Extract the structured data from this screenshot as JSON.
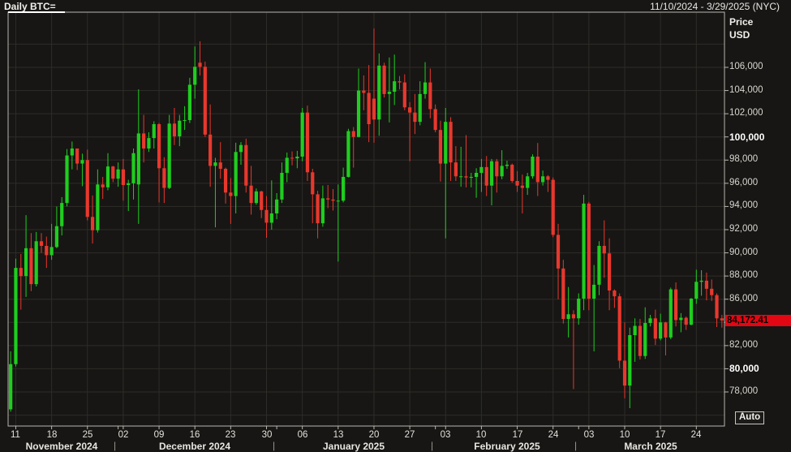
{
  "window": {
    "title": "Daily BTC=",
    "date_range": "11/10/2024 - 3/29/2025 (NYC)"
  },
  "y_axis": {
    "title_line1": "Price",
    "title_line2": "USD",
    "ticks": [
      {
        "value": 106000,
        "label": "106,000",
        "bold": false
      },
      {
        "value": 104000,
        "label": "104,000",
        "bold": false
      },
      {
        "value": 102000,
        "label": "102,000",
        "bold": false
      },
      {
        "value": 100000,
        "label": "100,000",
        "bold": true
      },
      {
        "value": 98000,
        "label": "98,000",
        "bold": false
      },
      {
        "value": 96000,
        "label": "96,000",
        "bold": false
      },
      {
        "value": 94000,
        "label": "94,000",
        "bold": false
      },
      {
        "value": 92000,
        "label": "92,000",
        "bold": false
      },
      {
        "value": 90000,
        "label": "90,000",
        "bold": false
      },
      {
        "value": 88000,
        "label": "88,000",
        "bold": false
      },
      {
        "value": 86000,
        "label": "86,000",
        "bold": false
      },
      {
        "value": 84000,
        "label": "84,000",
        "bold": false
      },
      {
        "value": 82000,
        "label": "82,000",
        "bold": false
      },
      {
        "value": 80000,
        "label": "80,000",
        "bold": true
      },
      {
        "value": 78000,
        "label": "78,000",
        "bold": false
      }
    ],
    "last_price": {
      "value": 84172.41,
      "label": "84,172.41"
    }
  },
  "x_axis": {
    "day_ticks": [
      {
        "label": "11",
        "index": 1
      },
      {
        "label": "18",
        "index": 8
      },
      {
        "label": "25",
        "index": 15
      },
      {
        "label": "02",
        "index": 22
      },
      {
        "label": "09",
        "index": 29
      },
      {
        "label": "16",
        "index": 36
      },
      {
        "label": "23",
        "index": 43
      },
      {
        "label": "30",
        "index": 50
      },
      {
        "label": "06",
        "index": 57
      },
      {
        "label": "13",
        "index": 64
      },
      {
        "label": "20",
        "index": 71
      },
      {
        "label": "27",
        "index": 78
      },
      {
        "label": "03",
        "index": 85
      },
      {
        "label": "10",
        "index": 92
      },
      {
        "label": "17",
        "index": 99
      },
      {
        "label": "24",
        "index": 106
      },
      {
        "label": "03",
        "index": 113
      },
      {
        "label": "10",
        "index": 120
      },
      {
        "label": "17",
        "index": 127
      },
      {
        "label": "24",
        "index": 134
      }
    ],
    "month_labels": [
      {
        "label": "November 2024",
        "index": 10
      },
      {
        "label": "December 2024",
        "index": 36
      },
      {
        "label": "January 2025",
        "index": 67
      },
      {
        "label": "February 2025",
        "index": 97
      },
      {
        "label": "March 2025",
        "index": 125
      }
    ],
    "month_separator_indices": [
      20.5,
      51.5,
      82.5,
      110.5
    ],
    "month_start_indices": [
      21,
      52,
      83,
      111
    ]
  },
  "controls": {
    "auto_button": "Auto"
  },
  "colors": {
    "background": "#171614",
    "grid": "#2e2c29",
    "border": "#b9b6af",
    "up": "#1fce1f",
    "down": "#e8382d",
    "badge_bg": "#e30613",
    "badge_text": "#000000"
  },
  "chart_data": {
    "type": "candlestick",
    "title": "Daily BTC=",
    "symbol": "BTC=",
    "interval": "Daily",
    "start_date": "2024-11-10",
    "end_date": "2025-03-29",
    "timezone": "NYC",
    "ylabel": "Price USD",
    "y_tick_step": 2000,
    "visible_price_range": [
      75060,
      110760
    ],
    "last_close": 84172.41,
    "candle_fields": [
      "open",
      "high",
      "low",
      "close"
    ],
    "candles": [
      [
        76500,
        81500,
        76300,
        80400
      ],
      [
        80400,
        89500,
        80200,
        88700
      ],
      [
        88700,
        89900,
        85100,
        88000
      ],
      [
        88000,
        93250,
        86200,
        90400
      ],
      [
        90400,
        91700,
        86700,
        87300
      ],
      [
        87300,
        91800,
        87100,
        91000
      ],
      [
        91000,
        91700,
        90000,
        90600
      ],
      [
        90600,
        91400,
        88700,
        89800
      ],
      [
        89800,
        92500,
        89400,
        90500
      ],
      [
        90500,
        94000,
        90400,
        92300
      ],
      [
        92300,
        94800,
        91500,
        94300
      ],
      [
        94300,
        98950,
        94000,
        98400
      ],
      [
        98400,
        99600,
        97200,
        99000
      ],
      [
        99000,
        99000,
        97150,
        97700
      ],
      [
        97700,
        98550,
        95750,
        98000
      ],
      [
        98000,
        98900,
        92800,
        93100
      ],
      [
        93100,
        94950,
        90800,
        91950
      ],
      [
        91950,
        97200,
        91750,
        95900
      ],
      [
        95900,
        96550,
        94650,
        95650
      ],
      [
        95650,
        98600,
        95400,
        97450
      ],
      [
        97450,
        97500,
        96100,
        96400
      ],
      [
        96400,
        97800,
        95700,
        97200
      ],
      [
        97200,
        98100,
        94500,
        95850
      ],
      [
        95850,
        96300,
        93600,
        96000
      ],
      [
        96000,
        99000,
        94600,
        98600
      ],
      [
        95900,
        104100,
        92500,
        100300
      ],
      [
        100300,
        101900,
        97800,
        99000
      ],
      [
        99000,
        100400,
        98700,
        99900
      ],
      [
        99900,
        101350,
        99000,
        101100
      ],
      [
        101100,
        101200,
        94350,
        97300
      ],
      [
        97300,
        98250,
        94300,
        95600
      ],
      [
        95600,
        101900,
        95500,
        101150
      ],
      [
        101150,
        102500,
        99300,
        100050
      ],
      [
        100050,
        101900,
        99200,
        101400
      ],
      [
        101400,
        102650,
        100600,
        101450
      ],
      [
        101450,
        105100,
        101200,
        104500
      ],
      [
        104500,
        107800,
        103300,
        106050
      ],
      [
        106400,
        108250,
        105300,
        106050
      ],
      [
        106050,
        106500,
        100000,
        100200
      ],
      [
        100200,
        102800,
        95700,
        97500
      ],
      [
        97500,
        98200,
        92200,
        97800
      ],
      [
        97800,
        99550,
        96400,
        97250
      ],
      [
        97250,
        97350,
        94250,
        95200
      ],
      [
        95200,
        96450,
        92500,
        94900
      ],
      [
        94900,
        99500,
        93400,
        98700
      ],
      [
        98700,
        99550,
        97600,
        99300
      ],
      [
        99300,
        99850,
        95200,
        95800
      ],
      [
        95800,
        97500,
        93300,
        94300
      ],
      [
        94300,
        95550,
        94150,
        95300
      ],
      [
        95300,
        95350,
        93000,
        93700
      ],
      [
        93700,
        94900,
        91300,
        92600
      ],
      [
        92600,
        96250,
        92000,
        93400
      ],
      [
        93400,
        95150,
        92900,
        94600
      ],
      [
        94600,
        97800,
        94300,
        96900
      ],
      [
        96900,
        98650,
        96100,
        98200
      ],
      [
        98200,
        98750,
        97550,
        98150
      ],
      [
        98150,
        98800,
        97300,
        98300
      ],
      [
        98300,
        102500,
        97900,
        102100
      ],
      [
        102100,
        102700,
        96200,
        96950
      ],
      [
        96950,
        97250,
        92550,
        95050
      ],
      [
        95050,
        95350,
        91250,
        92550
      ],
      [
        92550,
        95800,
        92250,
        94700
      ],
      [
        94700,
        95850,
        93850,
        94600
      ],
      [
        94600,
        95500,
        93650,
        94500
      ],
      [
        94500,
        95900,
        89250,
        94500
      ],
      [
        94500,
        97350,
        94350,
        96550
      ],
      [
        96550,
        100700,
        96500,
        100500
      ],
      [
        100500,
        100850,
        97350,
        100000
      ],
      [
        100000,
        105900,
        99950,
        104000
      ],
      [
        104000,
        105300,
        102300,
        103800
      ],
      [
        103800,
        106200,
        99550,
        101100
      ],
      [
        103300,
        109350,
        99500,
        101500
      ],
      [
        101500,
        107200,
        100100,
        106150
      ],
      [
        106150,
        106400,
        103400,
        103700
      ],
      [
        103700,
        106850,
        101250,
        103900
      ],
      [
        103900,
        107100,
        102750,
        104800
      ],
      [
        104800,
        105250,
        104100,
        104700
      ],
      [
        104700,
        105400,
        102300,
        102550
      ],
      [
        102550,
        103000,
        97900,
        102100
      ],
      [
        102100,
        103700,
        100250,
        101300
      ],
      [
        101300,
        104800,
        101000,
        103700
      ],
      [
        103700,
        106450,
        103300,
        104700
      ],
      [
        104700,
        105900,
        101600,
        102400
      ],
      [
        102400,
        102800,
        100400,
        100600
      ],
      [
        100600,
        101400,
        96150,
        97700
      ],
      [
        97700,
        102500,
        91250,
        101300
      ],
      [
        101300,
        101700,
        96200,
        97800
      ],
      [
        97800,
        99200,
        96200,
        96600
      ],
      [
        96600,
        99150,
        95700,
        96600
      ],
      [
        96600,
        100150,
        95650,
        96500
      ],
      [
        96500,
        96900,
        95650,
        96550
      ],
      [
        96550,
        97300,
        94750,
        96900
      ],
      [
        96900,
        98100,
        95250,
        97400
      ],
      [
        97400,
        98350,
        94900,
        95800
      ],
      [
        95800,
        98100,
        94100,
        97900
      ],
      [
        97900,
        98100,
        95200,
        96600
      ],
      [
        96600,
        98850,
        96350,
        97500
      ],
      [
        97500,
        97950,
        97250,
        97600
      ],
      [
        97600,
        97700,
        96050,
        96200
      ],
      [
        96200,
        97050,
        95250,
        95800
      ],
      [
        95800,
        96750,
        93400,
        95600
      ],
      [
        95600,
        96900,
        95000,
        96600
      ],
      [
        96600,
        98500,
        96400,
        98300
      ],
      [
        98300,
        99475,
        94900,
        96100
      ],
      [
        96100,
        97100,
        95800,
        96600
      ],
      [
        96600,
        96700,
        95250,
        96300
      ],
      [
        96300,
        96500,
        91350,
        91550
      ],
      [
        91550,
        92500,
        86000,
        88650
      ],
      [
        88650,
        89400,
        83900,
        84300
      ],
      [
        84300,
        87050,
        82700,
        84700
      ],
      [
        84700,
        85050,
        78250,
        84350
      ],
      [
        84350,
        86500,
        83800,
        86050
      ],
      [
        86050,
        95000,
        85050,
        94250
      ],
      [
        94250,
        94400,
        85050,
        86050
      ],
      [
        86050,
        88950,
        81500,
        87250
      ],
      [
        87250,
        91000,
        86350,
        90600
      ],
      [
        90600,
        92800,
        87850,
        89950
      ],
      [
        89950,
        91250,
        85050,
        86750
      ],
      [
        86750,
        86850,
        85250,
        86250
      ],
      [
        86250,
        86500,
        80050,
        80700
      ],
      [
        80700,
        84000,
        77450,
        78550
      ],
      [
        78550,
        83550,
        76600,
        82900
      ],
      [
        82900,
        84350,
        80600,
        83700
      ],
      [
        83700,
        84300,
        80800,
        81100
      ],
      [
        81100,
        85300,
        80850,
        83950
      ],
      [
        83950,
        84650,
        83650,
        84350
      ],
      [
        84350,
        85100,
        82050,
        82600
      ],
      [
        82600,
        84750,
        82450,
        84000
      ],
      [
        84000,
        84050,
        81150,
        82700
      ],
      [
        82700,
        87000,
        82550,
        86850
      ],
      [
        86850,
        87450,
        83650,
        84200
      ],
      [
        84200,
        84800,
        83150,
        84400
      ],
      [
        84400,
        84500,
        83350,
        83800
      ],
      [
        83800,
        86100,
        83750,
        86050
      ],
      [
        86050,
        88550,
        85600,
        87500
      ],
      [
        87500,
        88500,
        86300,
        87600
      ],
      [
        87600,
        88300,
        85900,
        86900
      ],
      [
        86900,
        87700,
        85850,
        86350
      ],
      [
        86350,
        86500,
        83600,
        84350
      ],
      [
        84350,
        84650,
        83550,
        84172.41
      ]
    ]
  }
}
